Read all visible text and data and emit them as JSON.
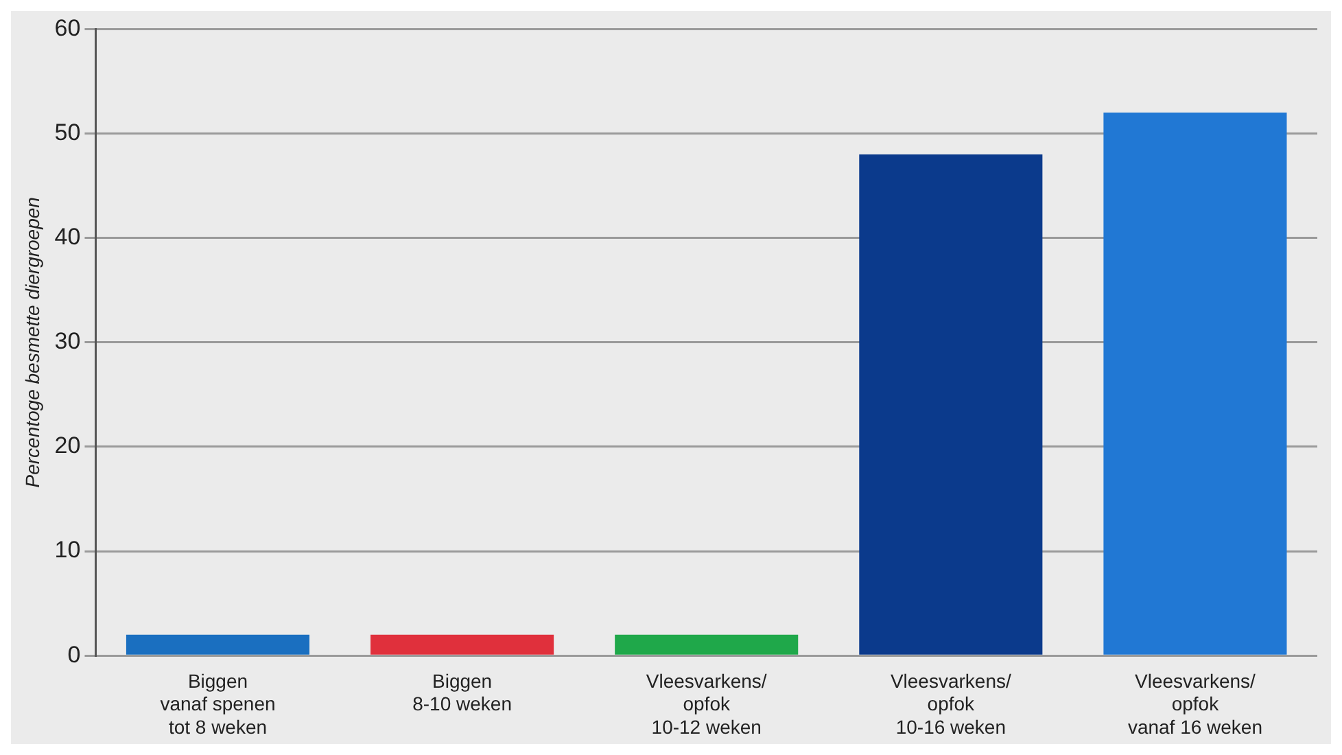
{
  "chart_data": {
    "type": "bar",
    "ylabel": "Percentoge besmette diergroepen",
    "categories": [
      "Biggen\nvanaf spenen\ntot 8 weken",
      "Biggen\n8-10 weken",
      "Vleesvarkens/\nopfok\n10-12 weken",
      "Vleesvarkens/\nopfok\n10-16 weken",
      "Vleesvarkens/\nopfok\nvanaf 16 weken"
    ],
    "values": [
      2,
      2,
      2,
      48,
      52
    ],
    "colors": [
      "#1a6fc0",
      "#e0303c",
      "#1fa84a",
      "#0b3a8c",
      "#2178d4"
    ],
    "ylim": [
      0,
      60
    ],
    "yticks": [
      0,
      10,
      20,
      30,
      40,
      50,
      60
    ],
    "grid": "y",
    "legend": false
  }
}
